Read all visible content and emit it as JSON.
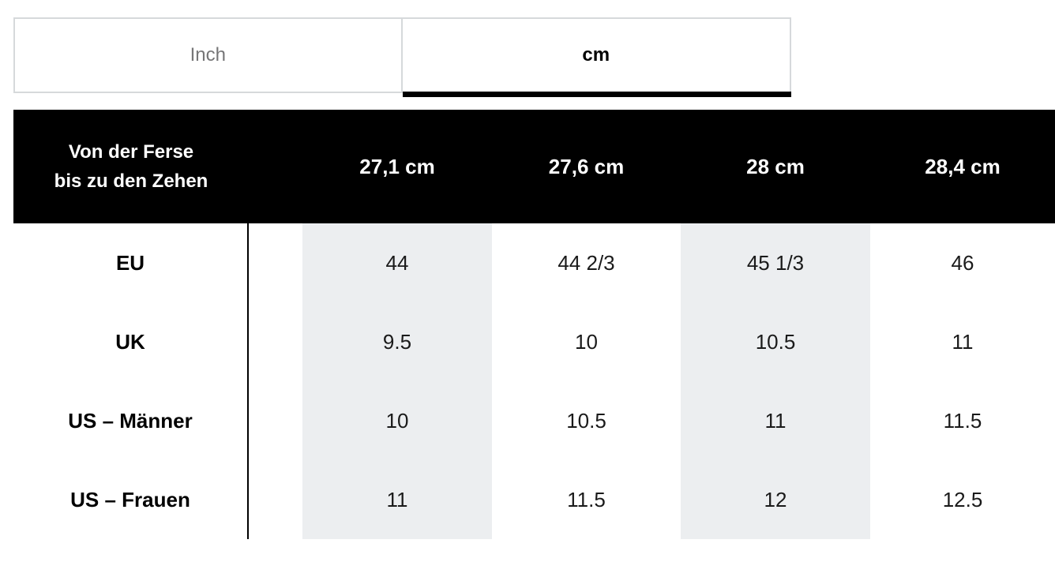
{
  "unit_toggle": {
    "tabs": [
      {
        "label": "Inch",
        "active": false
      },
      {
        "label": "cm",
        "active": true
      }
    ]
  },
  "size_chart": {
    "corner_header": {
      "line1": "Von der Ferse",
      "line2": "bis zu den Zehen"
    },
    "columns": [
      "27,1 cm",
      "27,6 cm",
      "28 cm",
      "28,4 cm"
    ],
    "rows": [
      {
        "label": "EU",
        "values": [
          "44",
          "44 2/3",
          "45 1/3",
          "46"
        ]
      },
      {
        "label": "UK",
        "values": [
          "9.5",
          "10",
          "10.5",
          "11"
        ]
      },
      {
        "label": "US – Männer",
        "values": [
          "10",
          "10.5",
          "11",
          "11.5"
        ]
      },
      {
        "label": "US – Frauen",
        "values": [
          "11",
          "11.5",
          "12",
          "12.5"
        ]
      }
    ]
  },
  "colors": {
    "header_bg": "#000000",
    "header_text": "#ffffff",
    "stripe_bg": "#eceef0",
    "inactive_tab_text": "#767677",
    "tab_border": "#d6d9db",
    "cell_text": "#1a1a1a"
  }
}
